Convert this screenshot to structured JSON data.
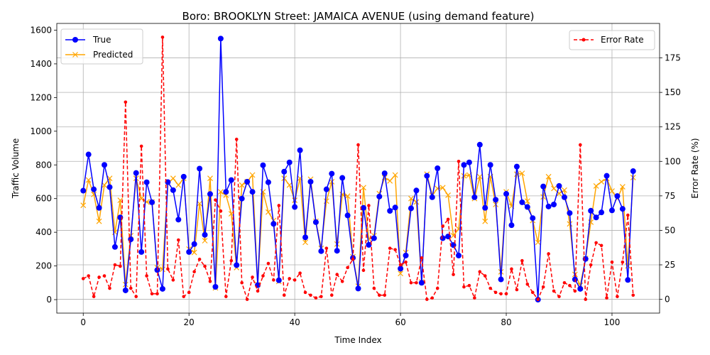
{
  "chart_data": {
    "type": "line",
    "title": "Boro: BROOKLYN Street: JAMAICA AVENUE (using demand feature)",
    "xlabel": "Time Index",
    "ylabel": "Traffic Volume",
    "y2label": "Error Rate (%)",
    "xlim": [
      -5,
      109
    ],
    "ylim": [
      -80,
      1640
    ],
    "y2lim": [
      -10,
      200
    ],
    "xticks": [
      "0",
      "20",
      "40",
      "60",
      "80",
      "100"
    ],
    "yticks": [
      "0",
      "200",
      "400",
      "600",
      "800",
      "1000",
      "1200",
      "1400",
      "1600"
    ],
    "y2ticks": [
      "0",
      "25",
      "50",
      "75",
      "100",
      "125",
      "150",
      "175"
    ],
    "grid": true,
    "legend_left_position": "upper-left",
    "legend_right_position": "upper-right",
    "colors": {
      "true": "#0000ff",
      "predicted": "#ffa500",
      "error": "#ff0000"
    },
    "series": [
      {
        "name": "True",
        "axis": "left",
        "values": [
          647,
          862,
          655,
          545,
          800,
          668,
          313,
          488,
          55,
          358,
          752,
          283,
          697,
          578,
          176,
          64,
          698,
          650,
          475,
          730,
          283,
          330,
          778,
          385,
          627,
          76,
          1550,
          640,
          710,
          205,
          600,
          700,
          640,
          86,
          798,
          697,
          450,
          115,
          760,
          815,
          550,
          887,
          370,
          700,
          460,
          288,
          655,
          748,
          290,
          723,
          500,
          248,
          66,
          545,
          325,
          365,
          612,
          750,
          527,
          547,
          184,
          262,
          542,
          648,
          100,
          735,
          608,
          780,
          365,
          375,
          324,
          262,
          800,
          815,
          608,
          920,
          545,
          800,
          593,
          120,
          628,
          442,
          790,
          578,
          550,
          484,
          0,
          672,
          553,
          565,
          675,
          608,
          514,
          120,
          64,
          242,
          528,
          488,
          518,
          735,
          530,
          615,
          539,
          117,
          763
        ]
      },
      {
        "name": "Predicted",
        "axis": "left",
        "values": [
          560,
          710,
          625,
          465,
          680,
          720,
          400,
          590,
          90,
          380,
          720,
          600,
          580,
          580,
          190,
          180,
          690,
          720,
          680,
          720,
          300,
          280,
          570,
          350,
          720,
          70,
          640,
          620,
          510,
          190,
          680,
          700,
          740,
          90,
          640,
          520,
          470,
          108,
          720,
          680,
          590,
          720,
          340,
          715,
          465,
          305,
          585,
          700,
          330,
          625,
          615,
          255,
          80,
          665,
          360,
          380,
          630,
          725,
          705,
          740,
          155,
          280,
          600,
          580,
          105,
          745,
          620,
          660,
          665,
          620,
          380,
          420,
          735,
          740,
          600,
          730,
          465,
          730,
          565,
          165,
          640,
          555,
          745,
          750,
          585,
          470,
          340,
          610,
          730,
          660,
          630,
          650,
          450,
          150,
          85,
          245,
          460,
          675,
          700,
          720,
          645,
          600,
          670,
          200,
          725
        ]
      },
      {
        "name": "Error Rate",
        "axis": "right",
        "values": [
          15,
          17,
          2,
          16,
          17,
          8,
          25,
          24,
          143,
          8,
          2,
          111,
          17,
          4,
          4,
          190,
          22,
          14,
          43,
          2,
          5,
          20,
          29,
          24,
          13,
          72,
          64,
          2,
          28,
          116,
          12,
          0,
          16,
          6,
          17,
          26,
          14,
          68,
          3,
          15,
          14,
          19,
          5,
          3,
          1,
          2,
          37,
          3,
          18,
          13,
          23,
          29,
          112,
          21,
          68,
          8,
          3,
          3,
          37,
          36,
          25,
          27,
          12,
          12,
          30,
          0,
          1,
          8,
          53,
          58,
          18,
          100,
          9,
          10,
          1,
          20,
          17,
          8,
          5,
          4,
          4,
          22,
          7,
          28,
          11,
          5,
          0,
          9,
          33,
          6,
          2,
          12,
          10,
          6,
          112,
          0,
          25,
          41,
          39,
          1,
          27,
          2,
          27,
          61,
          3
        ]
      }
    ]
  }
}
